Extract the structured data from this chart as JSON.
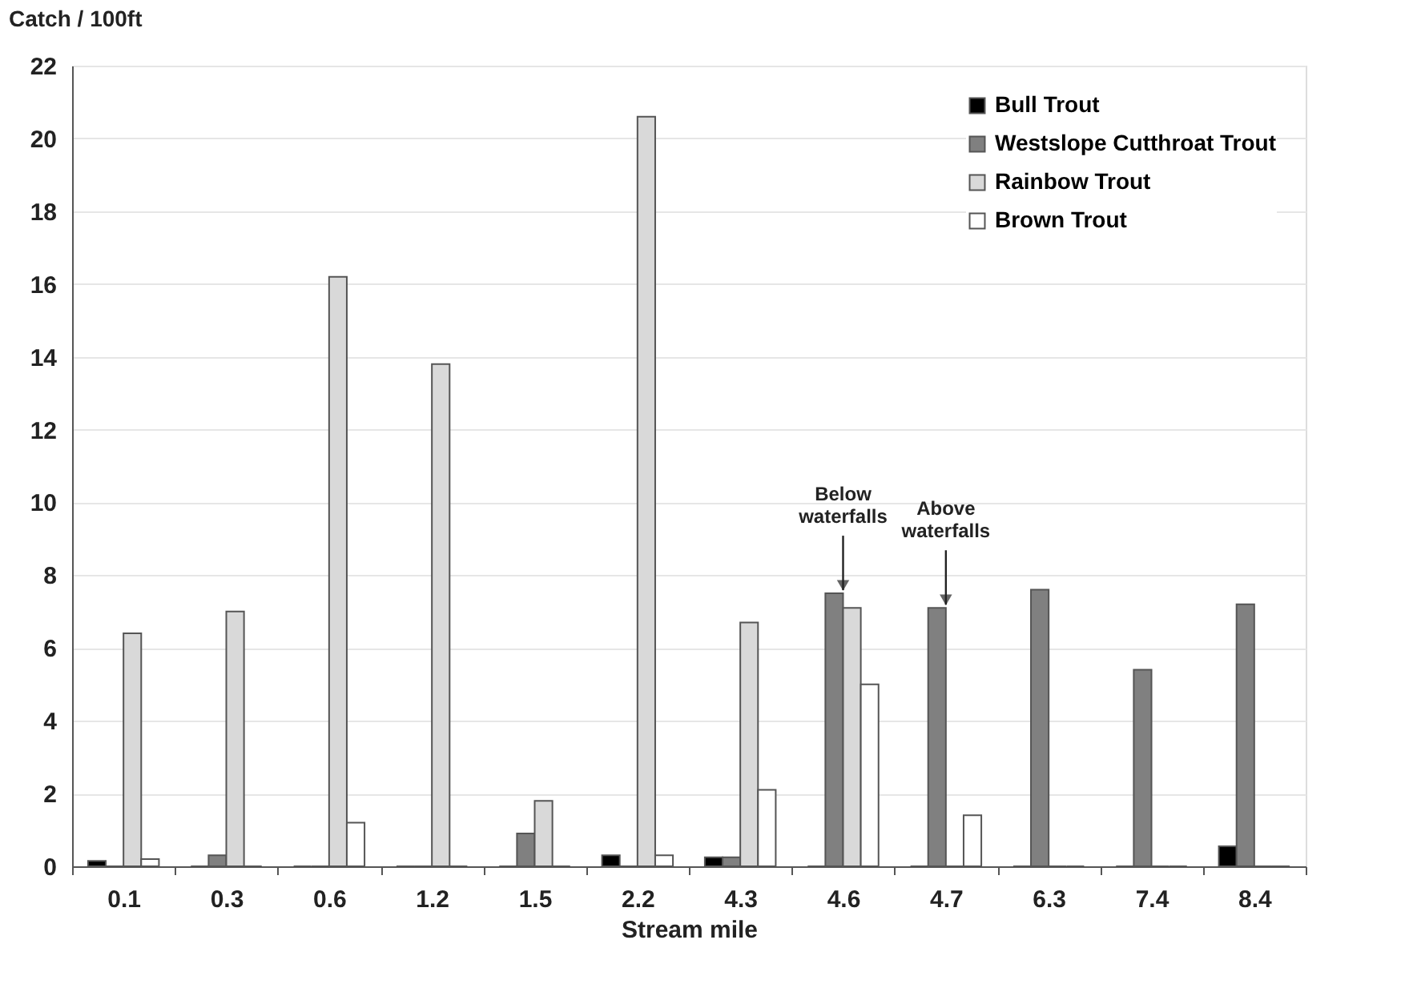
{
  "chart_data": {
    "type": "bar",
    "ylabel": "Catch / 100ft",
    "xlabel": "Stream mile",
    "categories": [
      "0.1",
      "0.3",
      "0.6",
      "1.2",
      "1.5",
      "2.2",
      "4.3",
      "4.6",
      "4.7",
      "6.3",
      "7.4",
      "8.4"
    ],
    "series": [
      {
        "name": "Bull Trout",
        "color": "#000000",
        "values": [
          0.15,
          0,
          0,
          0,
          0,
          0.3,
          0.25,
          0,
          0,
          0,
          0,
          0.55
        ]
      },
      {
        "name": "Westslope Cutthroat Trout",
        "color": "#808080",
        "values": [
          0,
          0.3,
          0,
          0,
          0.9,
          0,
          0.25,
          7.5,
          7.1,
          7.6,
          5.4,
          7.2
        ]
      },
      {
        "name": "Rainbow Trout",
        "color": "#d9d9d9",
        "values": [
          6.4,
          7.0,
          16.2,
          13.8,
          1.8,
          20.6,
          6.7,
          7.1,
          0,
          0,
          0,
          0
        ]
      },
      {
        "name": "Brown Trout",
        "color": "#ffffff",
        "values": [
          0.2,
          0,
          1.2,
          0,
          0,
          0.3,
          2.1,
          5.0,
          1.4,
          0,
          0,
          0
        ]
      }
    ],
    "ylim": [
      0,
      22
    ],
    "yticks": [
      0,
      2,
      4,
      6,
      8,
      10,
      12,
      14,
      16,
      18,
      20,
      22
    ],
    "grid": "y",
    "legend": "top right",
    "annotations": [
      {
        "text": "Below\nwaterfalls",
        "x": "4.6",
        "y": 7.5
      },
      {
        "text": "Above\nwaterfalls",
        "x": "4.7",
        "y": 7.1
      }
    ]
  }
}
